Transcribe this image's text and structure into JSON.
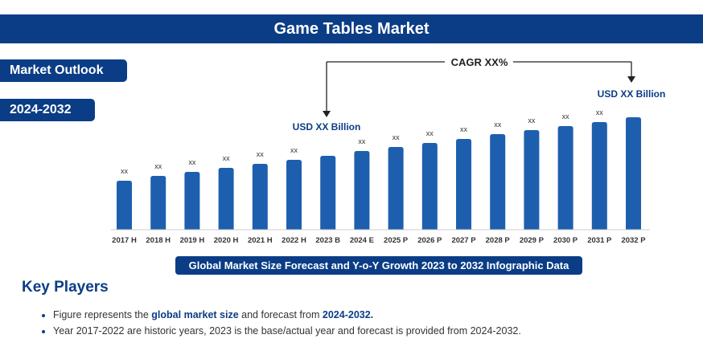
{
  "header": {
    "title": "Game Tables Market"
  },
  "badges": {
    "outlook": "Market Outlook",
    "period": "2024-2032"
  },
  "annotations": {
    "cagr": "CAGR XX%",
    "start_value": "USD XX Billion",
    "end_value": "USD XX Billion"
  },
  "caption": "Global Market Size Forecast and Y-o-Y Growth 2023 to 2032 Infographic Data",
  "key_players": {
    "heading": "Key Players",
    "note1": {
      "prefix": "Figure represents the ",
      "bold1": "global market size",
      "middle": " and forecast from ",
      "bold2": "2024-2032."
    },
    "note2": "Year 2017-2022 are historic years, 2023 is the base/actual year and forecast is provided from 2024-2032."
  },
  "colors": {
    "primary": "#0b3d86",
    "bar": "#1d5fae"
  },
  "chart_data": {
    "type": "bar",
    "categories": [
      "2017 H",
      "2018 H",
      "2019 H",
      "2020 H",
      "2021 H",
      "2022 H",
      "2023 B",
      "2024 E",
      "2025 P",
      "2026 P",
      "2027 P",
      "2028 P",
      "2029 P",
      "2030 P",
      "2031 P",
      "2032 P"
    ],
    "values": [
      61,
      67,
      72,
      77,
      82,
      87,
      92,
      98,
      103,
      108,
      113,
      119,
      124,
      129,
      134,
      140
    ],
    "data_labels": [
      "xx",
      "xx",
      "xx",
      "xx",
      "xx",
      "xx",
      "",
      "xx",
      "xx",
      "xx",
      "xx",
      "xx",
      "xx",
      "xx",
      "xx",
      ""
    ],
    "title": "",
    "xlabel": "",
    "ylabel": "",
    "ylim": [
      0,
      150
    ],
    "grid": false,
    "legend": "none"
  }
}
